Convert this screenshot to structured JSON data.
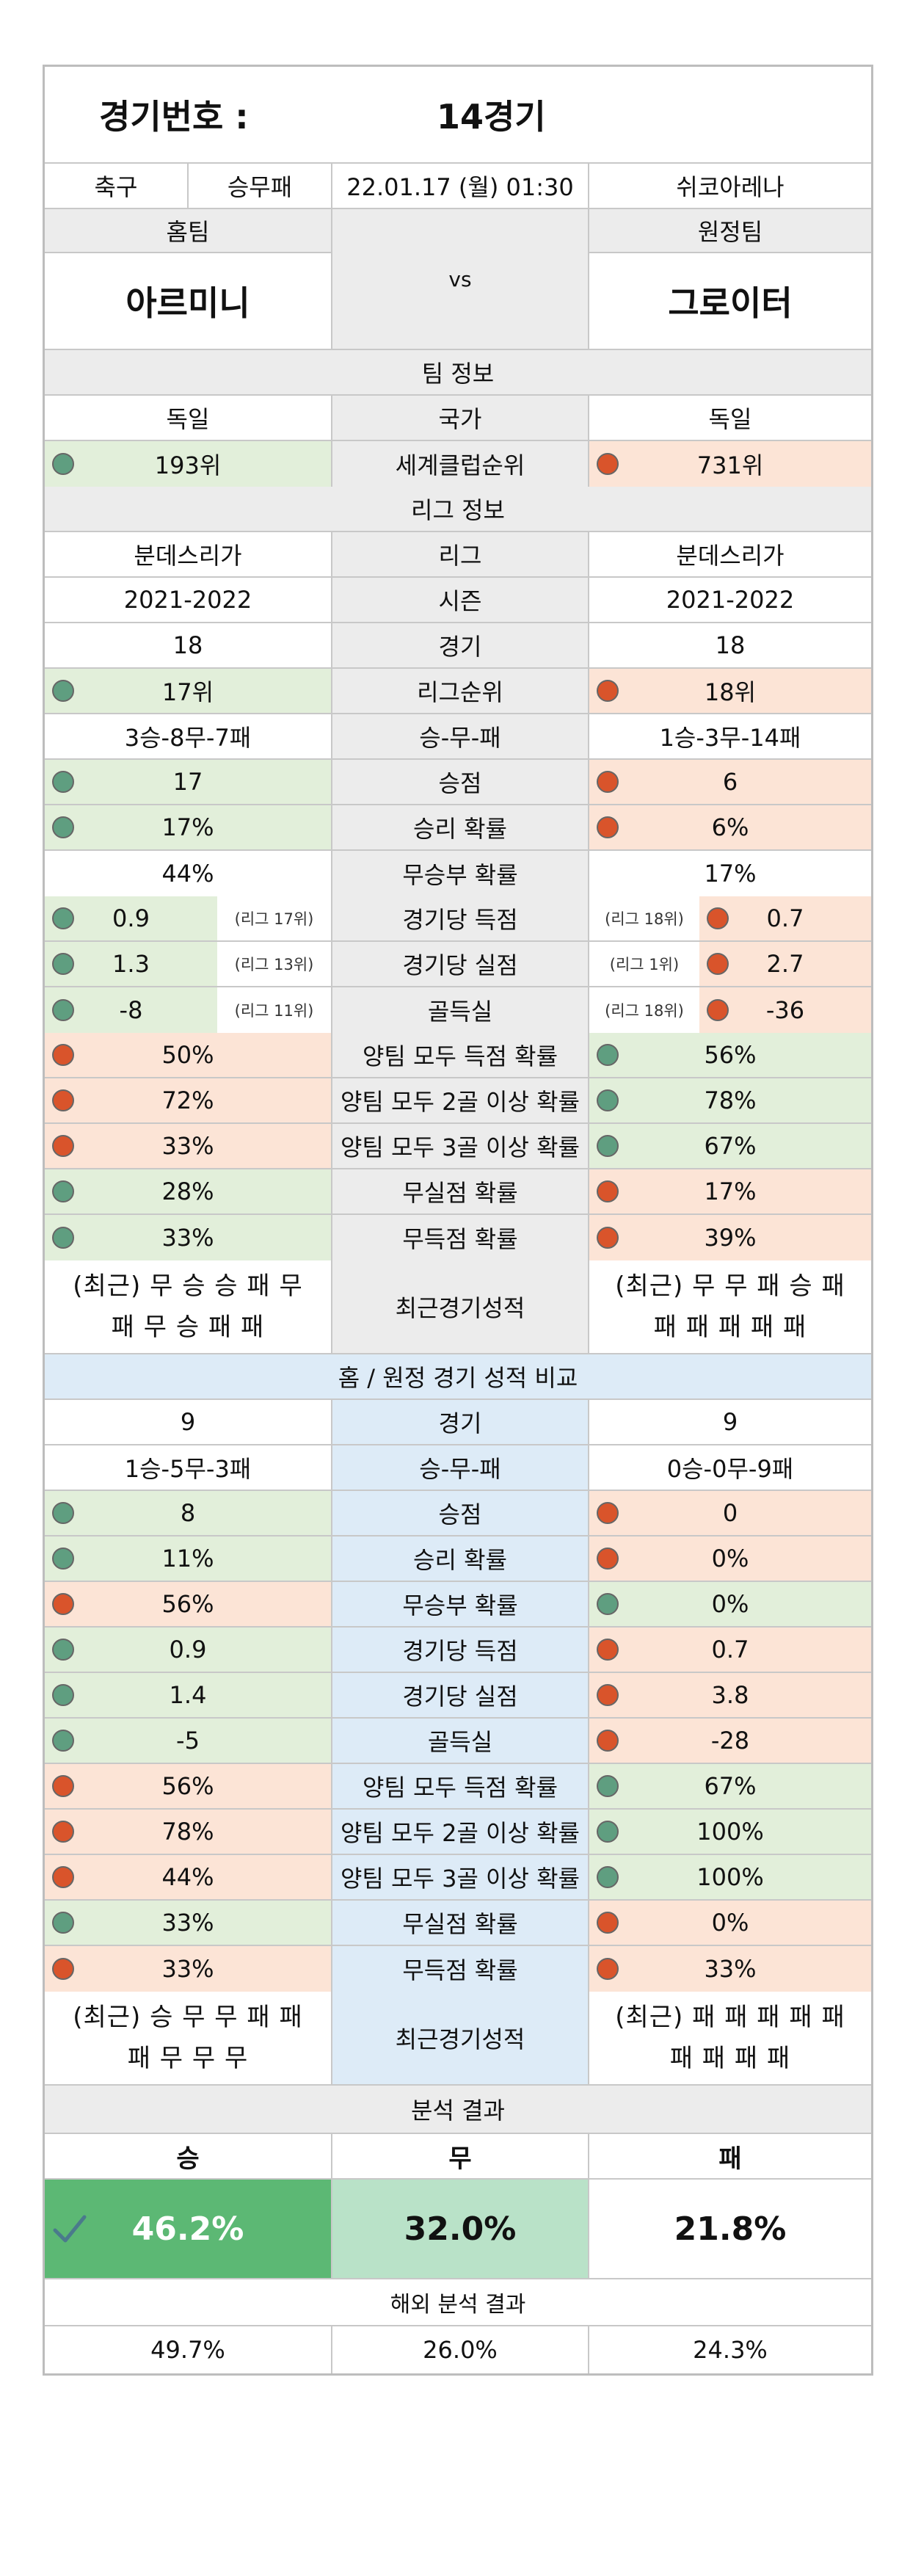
{
  "title": {
    "label": "경기번호 :",
    "value": "14경기"
  },
  "info": {
    "sport": "축구",
    "type": "승무패",
    "datetime": "22.01.17 (월) 01:30",
    "venue": "쉬코아레나"
  },
  "teams": {
    "home_label": "홈팀",
    "away_label": "원정팀",
    "vs": "vs",
    "home": "아르미니",
    "away": "그로이터"
  },
  "team_info": {
    "header": "팀 정보",
    "rows": [
      {
        "label": "국가",
        "home": "독일",
        "away": "독일",
        "home_color": "",
        "away_color": ""
      },
      {
        "label": "세계클럽순위",
        "home": "193위",
        "away": "731위",
        "home_color": "green",
        "away_color": "red"
      }
    ]
  },
  "league_info": {
    "header": "리그 정보",
    "rows": [
      {
        "label": "리그",
        "home": "분데스리가",
        "away": "분데스리가",
        "home_color": "",
        "away_color": ""
      },
      {
        "label": "시즌",
        "home": "2021-2022",
        "away": "2021-2022",
        "home_color": "",
        "away_color": ""
      },
      {
        "label": "경기",
        "home": "18",
        "away": "18",
        "home_color": "",
        "away_color": ""
      },
      {
        "label": "리그순위",
        "home": "17위",
        "away": "18위",
        "home_color": "green",
        "away_color": "red"
      },
      {
        "label": "승-무-패",
        "home": "3승-8무-7패",
        "away": "1승-3무-14패",
        "home_color": "",
        "away_color": ""
      },
      {
        "label": "승점",
        "home": "17",
        "away": "6",
        "home_color": "green",
        "away_color": "red"
      },
      {
        "label": "승리 확률",
        "home": "17%",
        "away": "6%",
        "home_color": "green",
        "away_color": "red"
      },
      {
        "label": "무승부 확률",
        "home": "44%",
        "away": "17%",
        "home_color": "",
        "away_color": ""
      }
    ],
    "ranked_rows": [
      {
        "label": "경기당 득점",
        "home": "0.9",
        "home_rank": "(리그 17위)",
        "away": "0.7",
        "away_rank": "(리그 18위)",
        "home_color": "green",
        "away_color": "red"
      },
      {
        "label": "경기당 실점",
        "home": "1.3",
        "home_rank": "(리그 13위)",
        "away": "2.7",
        "away_rank": "(리그 1위)",
        "home_color": "green",
        "away_color": "red"
      },
      {
        "label": "골득실",
        "home": "-8",
        "home_rank": "(리그 11위)",
        "away": "-36",
        "away_rank": "(리그 18위)",
        "home_color": "green",
        "away_color": "red"
      }
    ],
    "prob_rows": [
      {
        "label": "양팀 모두 득점 확률",
        "home": "50%",
        "away": "56%",
        "home_color": "red",
        "away_color": "green"
      },
      {
        "label": "양팀 모두 2골 이상 확률",
        "home": "72%",
        "away": "78%",
        "home_color": "red",
        "away_color": "green"
      },
      {
        "label": "양팀 모두 3골 이상 확률",
        "home": "33%",
        "away": "67%",
        "home_color": "red",
        "away_color": "green"
      },
      {
        "label": "무실점 확률",
        "home": "28%",
        "away": "17%",
        "home_color": "green",
        "away_color": "red"
      },
      {
        "label": "무득점 확률",
        "home": "33%",
        "away": "39%",
        "home_color": "green",
        "away_color": "red"
      }
    ],
    "recent": {
      "label": "최근경기성적",
      "home_line1": "(최근) 무 승 승 패 무",
      "home_line2": "패 무 승 패 패",
      "away_line1": "(최근) 무 무 패 승 패",
      "away_line2": "패 패 패 패 패"
    }
  },
  "home_away": {
    "header": "홈 / 원정 경기 성적 비교",
    "rows": [
      {
        "label": "경기",
        "home": "9",
        "away": "9",
        "home_color": "",
        "away_color": ""
      },
      {
        "label": "승-무-패",
        "home": "1승-5무-3패",
        "away": "0승-0무-9패",
        "home_color": "",
        "away_color": ""
      },
      {
        "label": "승점",
        "home": "8",
        "away": "0",
        "home_color": "green",
        "away_color": "red"
      },
      {
        "label": "승리 확률",
        "home": "11%",
        "away": "0%",
        "home_color": "green",
        "away_color": "red"
      },
      {
        "label": "무승부 확률",
        "home": "56%",
        "away": "0%",
        "home_color": "red",
        "away_color": "green"
      },
      {
        "label": "경기당 득점",
        "home": "0.9",
        "away": "0.7",
        "home_color": "green",
        "away_color": "red"
      },
      {
        "label": "경기당 실점",
        "home": "1.4",
        "away": "3.8",
        "home_color": "green",
        "away_color": "red"
      },
      {
        "label": "골득실",
        "home": "-5",
        "away": "-28",
        "home_color": "green",
        "away_color": "red"
      },
      {
        "label": "양팀 모두 득점 확률",
        "home": "56%",
        "away": "67%",
        "home_color": "red",
        "away_color": "green"
      },
      {
        "label": "양팀 모두 2골 이상 확률",
        "home": "78%",
        "away": "100%",
        "home_color": "red",
        "away_color": "green"
      },
      {
        "label": "양팀 모두 3골 이상 확률",
        "home": "44%",
        "away": "100%",
        "home_color": "red",
        "away_color": "green"
      },
      {
        "label": "무실점 확률",
        "home": "33%",
        "away": "0%",
        "home_color": "green",
        "away_color": "red"
      },
      {
        "label": "무득점 확률",
        "home": "33%",
        "away": "33%",
        "home_color": "red",
        "away_color": "red"
      }
    ],
    "recent": {
      "label": "최근경기성적",
      "home_line1": "(최근) 승 무 무 패 패",
      "home_line2": "패 무 무 무",
      "away_line1": "(최근) 패 패 패 패 패",
      "away_line2": "패 패 패 패"
    }
  },
  "analysis": {
    "header": "분석 결과",
    "win_label": "승",
    "draw_label": "무",
    "loss_label": "패",
    "win": "46.2%",
    "draw": "32.0%",
    "loss": "21.8%",
    "overseas_header": "해외 분석 결과",
    "overseas_win": "49.7%",
    "overseas_draw": "26.0%",
    "overseas_loss": "24.3%",
    "check_icon": "check-icon"
  },
  "colors": {
    "green": "#e2efda",
    "red": "#fce4d6",
    "blue": "#ddebf7",
    "gray": "#ececec",
    "dot_green": "#5f9e80",
    "dot_red": "#d9542b",
    "win_green": "#5cb874",
    "draw_green": "#b9e2c8"
  }
}
